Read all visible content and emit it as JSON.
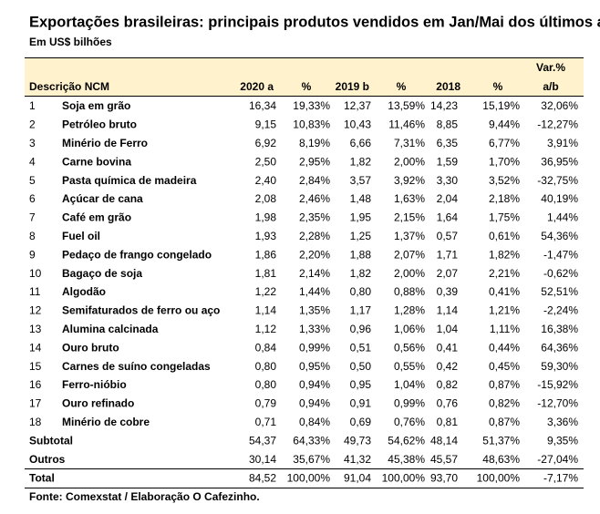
{
  "header": {
    "title": "Exportações brasileiras: principais produtos vendidos em Jan/Mai dos últimos anos",
    "subtitle": "Em US$ bilhões"
  },
  "table": {
    "columns": [
      "Descrição NCM",
      "2020 a",
      "%",
      "2019 b",
      "%",
      "2018",
      "%",
      {
        "line1": "Var.%",
        "line2": "a/b"
      }
    ],
    "rows": [
      [
        "1",
        "Soja em grão",
        "16,34",
        "19,33%",
        "12,37",
        "13,59%",
        "14,23",
        "15,19%",
        "32,06%"
      ],
      [
        "2",
        "Petróleo bruto",
        "9,15",
        "10,83%",
        "10,43",
        "11,46%",
        "8,85",
        "9,44%",
        "-12,27%"
      ],
      [
        "3",
        "Minério de Ferro",
        "6,92",
        "8,19%",
        "6,66",
        "7,31%",
        "6,35",
        "6,77%",
        "3,91%"
      ],
      [
        "4",
        "Carne bovina",
        "2,50",
        "2,95%",
        "1,82",
        "2,00%",
        "1,59",
        "1,70%",
        "36,95%"
      ],
      [
        "5",
        "Pasta química de madeira",
        "2,40",
        "2,84%",
        "3,57",
        "3,92%",
        "3,30",
        "3,52%",
        "-32,75%"
      ],
      [
        "6",
        "Açúcar de cana",
        "2,08",
        "2,46%",
        "1,48",
        "1,63%",
        "2,04",
        "2,18%",
        "40,19%"
      ],
      [
        "7",
        "Café em grão",
        "1,98",
        "2,35%",
        "1,95",
        "2,15%",
        "1,64",
        "1,75%",
        "1,44%"
      ],
      [
        "8",
        "Fuel oil",
        "1,93",
        "2,28%",
        "1,25",
        "1,37%",
        "0,57",
        "0,61%",
        "54,36%"
      ],
      [
        "9",
        "Pedaço de frango congelado",
        "1,86",
        "2,20%",
        "1,88",
        "2,07%",
        "1,71",
        "1,82%",
        "-1,47%"
      ],
      [
        "10",
        "Bagaço de soja",
        "1,81",
        "2,14%",
        "1,82",
        "2,00%",
        "2,07",
        "2,21%",
        "-0,62%"
      ],
      [
        "11",
        "Algodão",
        "1,22",
        "1,44%",
        "0,80",
        "0,88%",
        "0,39",
        "0,41%",
        "52,51%"
      ],
      [
        "12",
        "Semifaturados de ferro ou aço",
        "1,14",
        "1,35%",
        "1,17",
        "1,28%",
        "1,14",
        "1,21%",
        "-2,24%"
      ],
      [
        "13",
        "Alumina calcinada",
        "1,12",
        "1,33%",
        "0,96",
        "1,06%",
        "1,04",
        "1,11%",
        "16,38%"
      ],
      [
        "14",
        "Ouro bruto",
        "0,84",
        "0,99%",
        "0,51",
        "0,56%",
        "0,41",
        "0,44%",
        "64,36%"
      ],
      [
        "15",
        "Carnes de suíno congeladas",
        "0,80",
        "0,95%",
        "0,50",
        "0,55%",
        "0,42",
        "0,45%",
        "59,30%"
      ],
      [
        "16",
        "Ferro-nióbio",
        "0,80",
        "0,94%",
        "0,95",
        "1,04%",
        "0,82",
        "0,87%",
        "-15,92%"
      ],
      [
        "17",
        "Ouro refinado",
        "0,79",
        "0,94%",
        "0,91",
        "0,99%",
        "0,76",
        "0,82%",
        "-12,70%"
      ],
      [
        "18",
        "Minério de cobre",
        "0,71",
        "0,84%",
        "0,69",
        "0,76%",
        "0,81",
        "0,87%",
        "3,36%"
      ]
    ],
    "summary": [
      [
        "Subtotal",
        "54,37",
        "64,33%",
        "49,73",
        "54,62%",
        "48,14",
        "51,37%",
        "9,35%"
      ],
      [
        "Outros",
        "30,14",
        "35,67%",
        "41,32",
        "45,38%",
        "45,57",
        "48,63%",
        "-27,04%"
      ],
      [
        "Total",
        "84,52",
        "100,00%",
        "91,04",
        "100,00%",
        "93,70",
        "100,00%",
        "-7,17%"
      ]
    ]
  },
  "footer": {
    "source": "Fonte: Comexstat / Elaboração O Cafezinho."
  }
}
